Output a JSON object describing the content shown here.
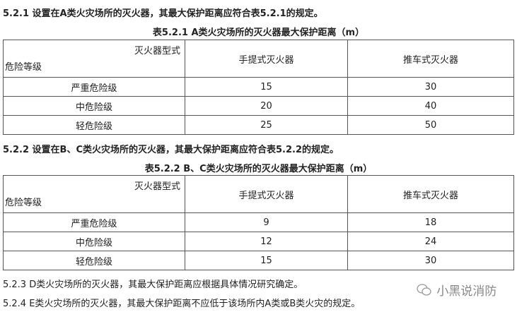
{
  "sections": [
    {
      "intro": "5.2.1 设置在A类火灾场所的灭火器，其最大保护距离应符合表5.2.1的规定。",
      "table_title": "表5.2.1 A类火灾场所的灭火器最大保护距离（m）",
      "header": {
        "type_label": "灭火器型式",
        "level_label": "危险等级",
        "col1": "手提式灭火器",
        "col2": "推车式灭火器"
      },
      "rows": [
        [
          "严重危险级",
          "15",
          "30"
        ],
        [
          "中危险级",
          "20",
          "40"
        ],
        [
          "轻危险级",
          "25",
          "50"
        ]
      ]
    },
    {
      "intro": "5.2.2 设置在B、C类火灾场所的灭火器，其最大保护距离应符合表5.2.2的规定。",
      "table_title": "表5.2.2 B、C类火灾场所的灭火器最大保护距离（m）",
      "header": {
        "type_label": "灭火器型式",
        "level_label": "危险等级",
        "col1": "手提式灭火器",
        "col2": "推车式灭火器"
      },
      "rows": [
        [
          "严重危险级",
          "9",
          "18"
        ],
        [
          "中危险级",
          "12",
          "24"
        ],
        [
          "轻危险级",
          "15",
          "30"
        ]
      ]
    }
  ],
  "notes": [
    "5.2.3 D类火灾场所的灭火器，其最大保护距离应根据具体情况研究确定。",
    "5.2.4 E类火灾场所的灭火器，其最大保护距离不应低于该场所内A类或B类火灾的规定。"
  ],
  "watermark": {
    "icon": "wechat-icon",
    "text": "小黑说消防"
  }
}
